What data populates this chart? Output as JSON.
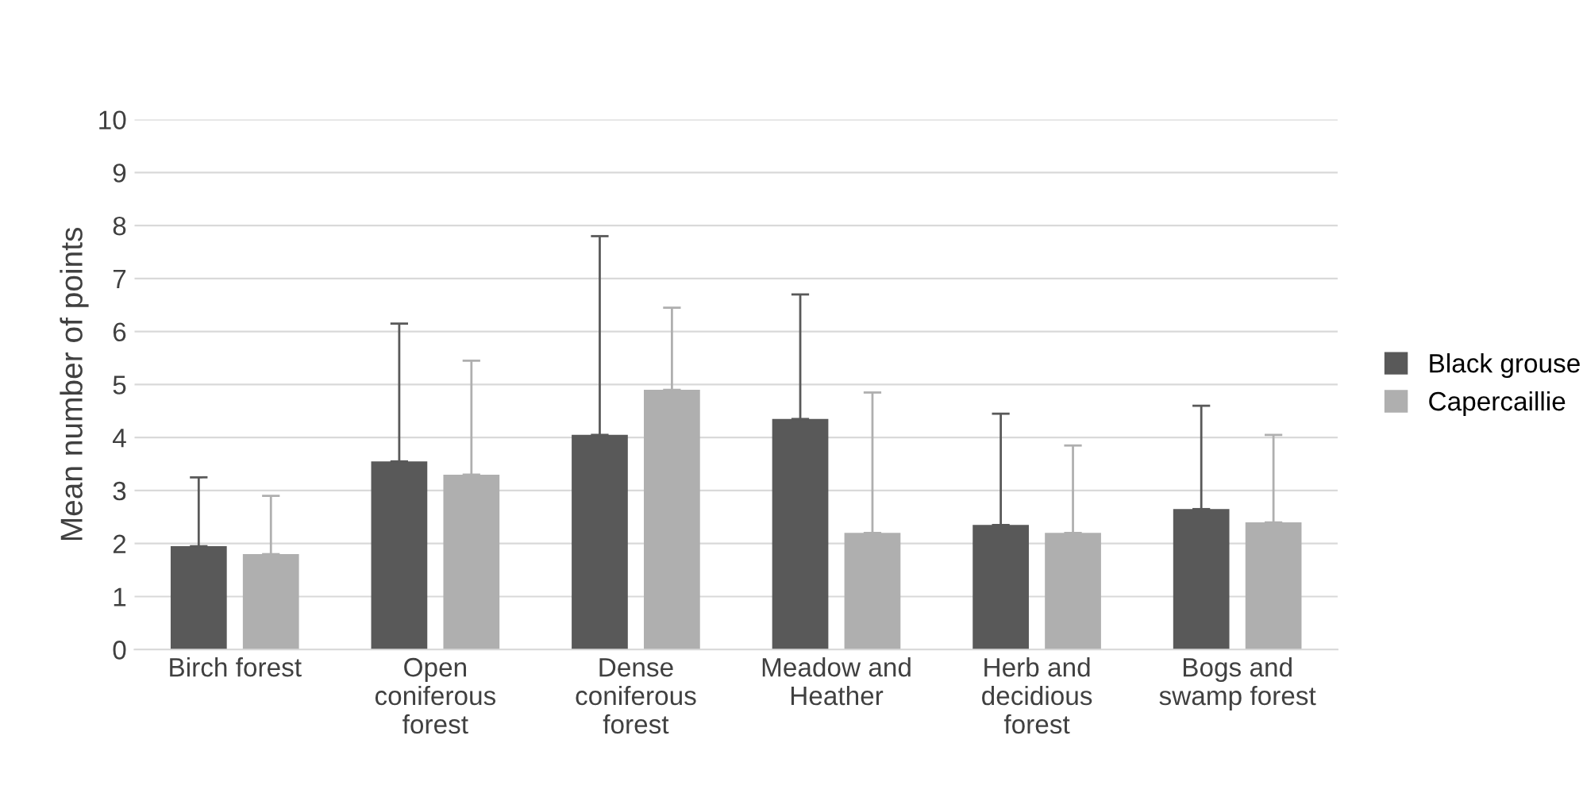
{
  "chart_data": {
    "type": "bar",
    "ylabel": "Mean number of points",
    "categories": [
      "Birch forest",
      "Open\nconiferous\nforest",
      "Dense\nconiferous\nforest",
      "Meadow and\nHeather",
      "Herb and\ndecidious\nforest",
      "Bogs and\nswamp forest"
    ],
    "series": [
      {
        "name": "Black grouse",
        "color": "#595959",
        "values": [
          1.95,
          3.55,
          4.05,
          4.35,
          2.35,
          2.65
        ],
        "errors": [
          [
            1.95,
            3.25
          ],
          [
            3.55,
            6.15
          ],
          [
            4.05,
            7.8
          ],
          [
            4.35,
            6.7
          ],
          [
            2.35,
            4.45
          ],
          [
            2.65,
            4.6
          ]
        ]
      },
      {
        "name": "Capercaillie",
        "color": "#afafaf",
        "values": [
          1.8,
          3.3,
          4.9,
          2.2,
          2.2,
          2.4
        ],
        "errors": [
          [
            1.8,
            2.9
          ],
          [
            3.3,
            5.45
          ],
          [
            4.9,
            6.45
          ],
          [
            2.2,
            4.85
          ],
          [
            2.2,
            3.85
          ],
          [
            2.4,
            4.05
          ]
        ]
      }
    ],
    "ylim": [
      0,
      10
    ],
    "yticks": [
      0,
      1,
      2,
      3,
      4,
      5,
      6,
      7,
      8,
      9,
      10
    ],
    "grid": "y",
    "legend": "right"
  }
}
